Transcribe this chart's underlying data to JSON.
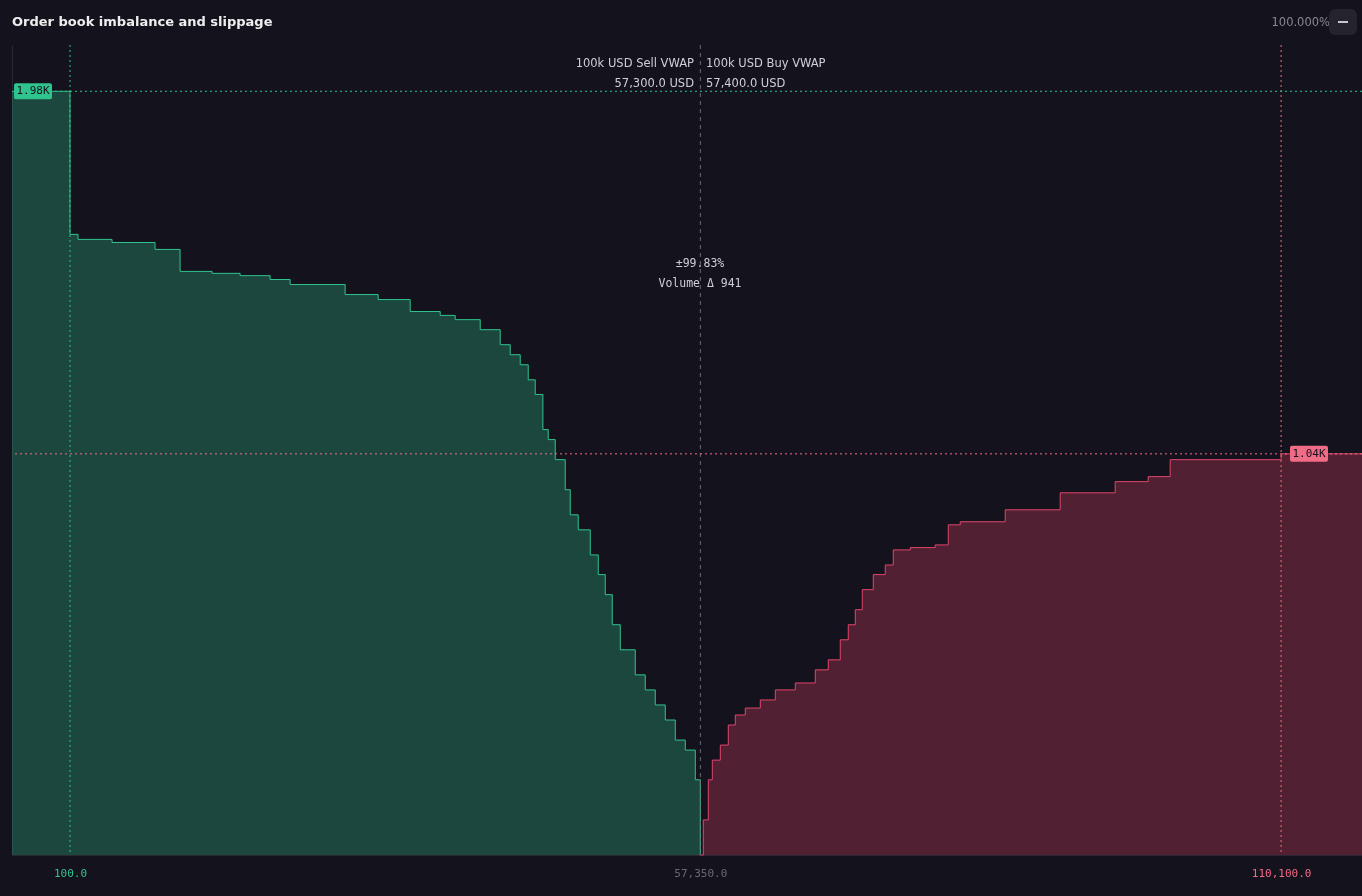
{
  "chart_data": {
    "type": "step",
    "title": "Order book imbalance and slippage",
    "xlim": [
      -5170,
      117450
    ],
    "ylim": [
      0,
      2100
    ],
    "xticks": [
      {
        "value": 100,
        "label": "100.0"
      },
      {
        "value": 57350,
        "label": "57,350.0"
      },
      {
        "value": 110100,
        "label": "110,100.0"
      }
    ],
    "tick_labels": "x",
    "grid": false,
    "series": [
      {
        "color": "#2fc48d",
        "x": [
          -5170,
          100,
          827,
          3917,
          7824,
          10096,
          13004,
          15548,
          18274,
          20091,
          25089,
          28088,
          30996,
          33722,
          35085,
          37357,
          39174,
          40083,
          40992,
          41718,
          42355,
          43051,
          43536,
          44172,
          45081,
          45535,
          46262,
          47352,
          48079,
          48715,
          49351,
          50079,
          51442,
          52350,
          53259,
          54168,
          55076,
          55985,
          56894,
          57350
        ],
        "values": [
          1980,
          1609,
          1596,
          1588,
          1570,
          1513,
          1508,
          1502,
          1492,
          1479,
          1453,
          1440,
          1409,
          1399,
          1388,
          1362,
          1323,
          1297,
          1271,
          1232,
          1194,
          1103,
          1077,
          1025,
          947,
          882,
          843,
          778,
          727,
          675,
          597,
          532,
          467,
          428,
          389,
          350,
          298,
          272,
          195,
          0
        ]
      },
      {
        "color": "#e0456a",
        "x": [
          57350,
          57622,
          58076,
          58440,
          59166,
          59892,
          60528,
          61436,
          62798,
          64160,
          65976,
          67792,
          68970,
          70062,
          70788,
          71424,
          72060,
          73058,
          74148,
          74874,
          76418,
          78688,
          79868,
          80958,
          85044,
          90038,
          95032,
          98028,
          100026,
          110100,
          117450
        ],
        "values": [
          0,
          91,
          195,
          246,
          285,
          337,
          363,
          381,
          402,
          428,
          446,
          480,
          506,
          558,
          597,
          636,
          688,
          727,
          752,
          791,
          797,
          804,
          856,
          864,
          895,
          939,
          968,
          981,
          1025,
          1040,
          1040
        ]
      }
    ],
    "ref_lines": [
      {
        "axis": "x",
        "value": 100,
        "color": "#2fc48d",
        "line_style": "dotted"
      },
      {
        "axis": "x",
        "value": 57350,
        "color": "#6b6875",
        "line_style": "dashed"
      },
      {
        "axis": "x",
        "value": 110100,
        "color": "#f06b85",
        "line_style": "dotted"
      },
      {
        "axis": "y",
        "value": 1980,
        "label": "1.98K",
        "color": "#2fc48d",
        "line_style": "dotted"
      },
      {
        "axis": "y",
        "value": 1040,
        "label": "1.04K",
        "color": "#f06b85",
        "line_style": "dotted"
      }
    ],
    "annotations": [
      "100.000%",
      "100k USD Sell VWAP",
      "57,300.0 USD",
      "100k USD Buy VWAP",
      "57,400.0 USD",
      "±99.83%",
      "Volume Δ 941"
    ]
  }
}
